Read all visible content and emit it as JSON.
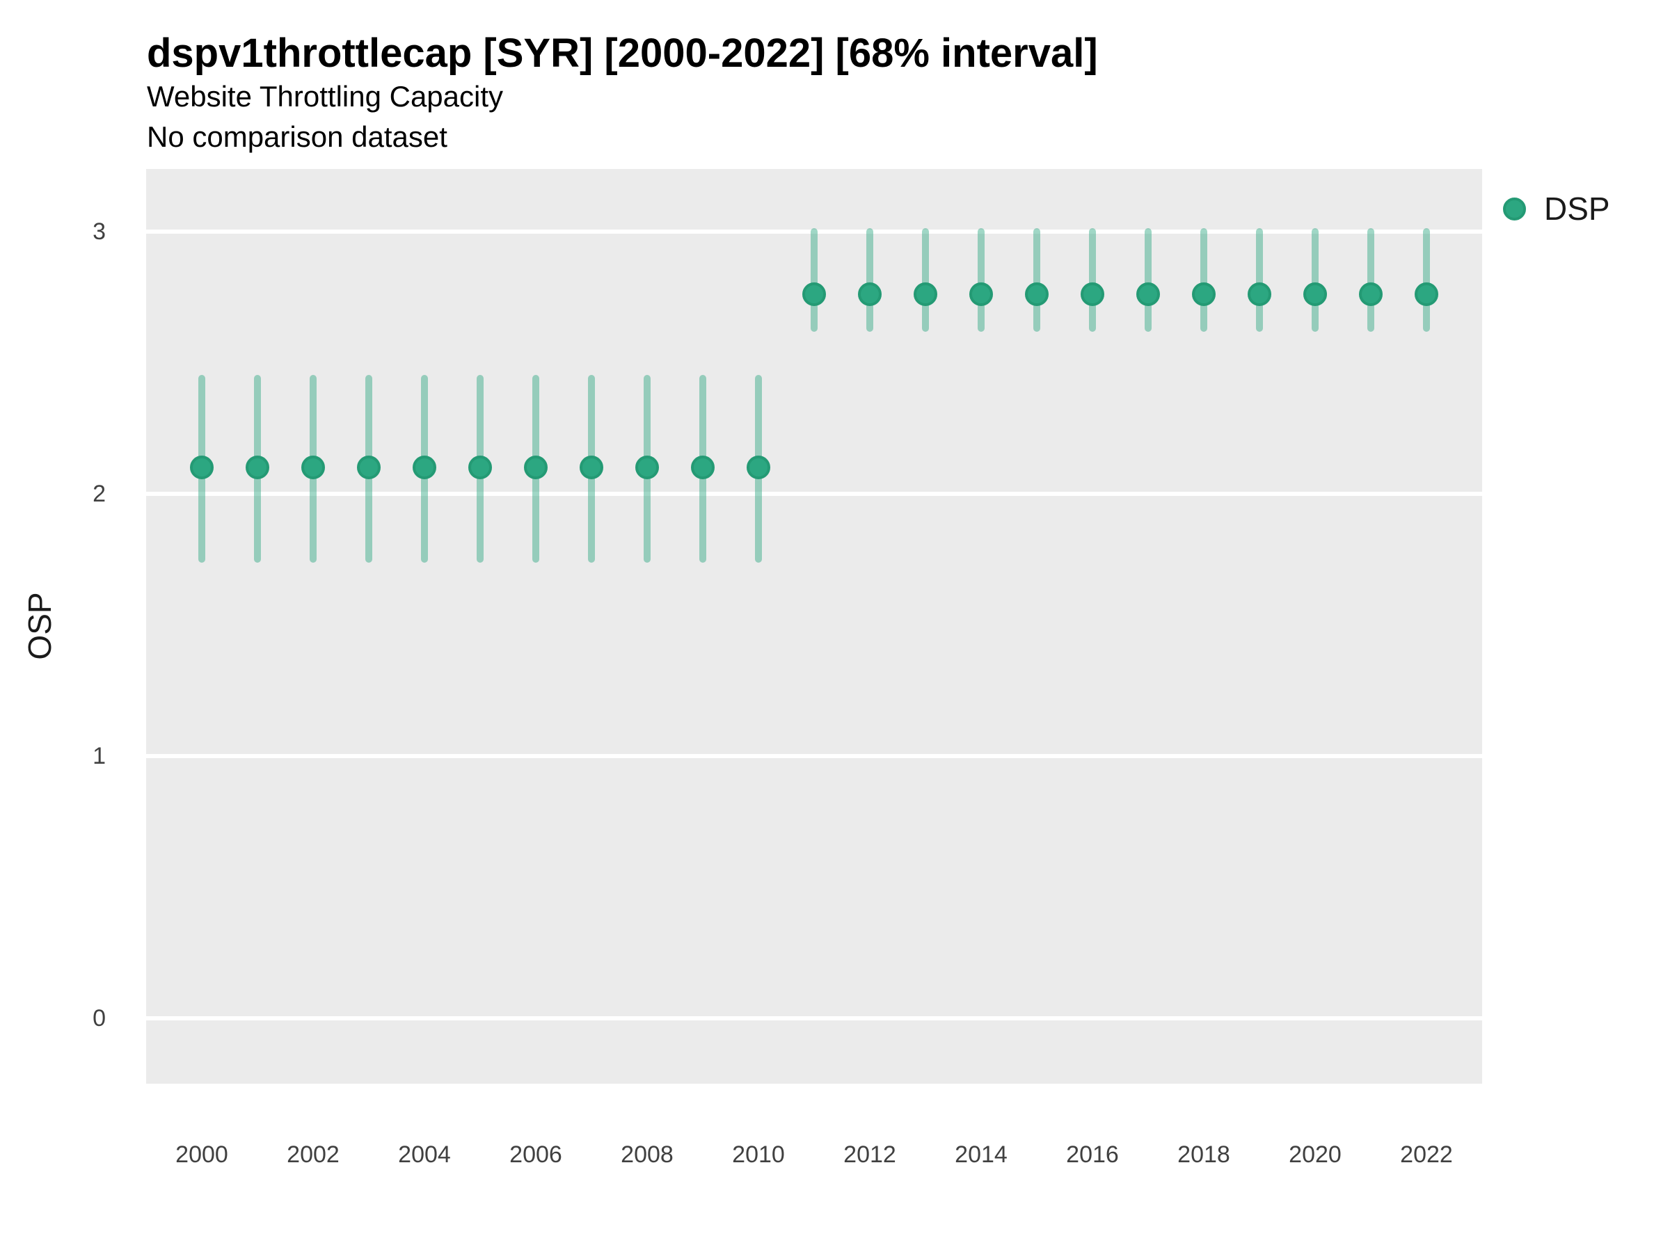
{
  "header": {
    "title": "dspv1throttlecap [SYR] [2000-2022] [68% interval]",
    "subtitle": "Website Throttling Capacity",
    "note": "No comparison dataset"
  },
  "legend": {
    "position": "right-top",
    "items": [
      {
        "label": "DSP",
        "color": "#2CA781"
      }
    ]
  },
  "chart_data": {
    "type": "scatter",
    "subtype": "point-interval",
    "interval_level": "68%",
    "title": "dspv1throttlecap [SYR] [2000-2022] [68% interval]",
    "subtitle": "Website Throttling Capacity",
    "annotation": "No comparison dataset",
    "xlabel": "",
    "ylabel": "OSP",
    "x": [
      2000,
      2001,
      2002,
      2003,
      2004,
      2005,
      2006,
      2007,
      2008,
      2009,
      2010,
      2011,
      2012,
      2013,
      2014,
      2015,
      2016,
      2017,
      2018,
      2019,
      2020,
      2021,
      2022
    ],
    "series": [
      {
        "name": "DSP",
        "mid": [
          2.1,
          2.1,
          2.1,
          2.1,
          2.1,
          2.1,
          2.1,
          2.1,
          2.1,
          2.1,
          2.1,
          2.76,
          2.76,
          2.76,
          2.76,
          2.76,
          2.76,
          2.76,
          2.76,
          2.76,
          2.76,
          2.76,
          2.76
        ],
        "lo": [
          1.75,
          1.75,
          1.75,
          1.75,
          1.75,
          1.75,
          1.75,
          1.75,
          1.75,
          1.75,
          1.75,
          2.63,
          2.63,
          2.63,
          2.63,
          2.63,
          2.63,
          2.63,
          2.63,
          2.63,
          2.63,
          2.63,
          2.63
        ],
        "hi": [
          2.44,
          2.44,
          2.44,
          2.44,
          2.44,
          2.44,
          2.44,
          2.44,
          2.44,
          2.44,
          2.44,
          3.0,
          3.0,
          3.0,
          3.0,
          3.0,
          3.0,
          3.0,
          3.0,
          3.0,
          3.0,
          3.0,
          3.0
        ]
      }
    ],
    "xticks": [
      2000,
      2002,
      2004,
      2006,
      2008,
      2010,
      2012,
      2014,
      2016,
      2018,
      2020,
      2022
    ],
    "yticks": [
      0,
      1,
      2,
      3
    ],
    "ylim": [
      -0.21,
      3.24
    ],
    "grid": "horizontal-major-only",
    "legend_position": "right-top",
    "colors": {
      "point_fill": "#2CA781",
      "point_edge": "#249A74",
      "interval": "rgba(44,167,129,0.45)",
      "panel_bg": "#EBEBEB",
      "gridline": "#FFFFFF",
      "axis_text": "#404040",
      "text": "#000000"
    }
  }
}
